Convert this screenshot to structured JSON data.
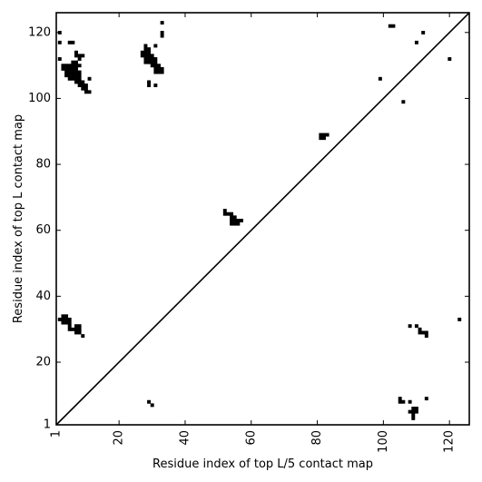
{
  "chart_data": {
    "type": "heatmap",
    "title": "",
    "xlabel": "Residue index of top L/5 contact map",
    "ylabel": "Residue index of top L contact map",
    "xlim": [
      1,
      126
    ],
    "ylim": [
      1,
      126
    ],
    "xticks": [
      {
        "value": 1,
        "label": "1"
      },
      {
        "value": 20,
        "label": "20"
      },
      {
        "value": 40,
        "label": "40"
      },
      {
        "value": 60,
        "label": "60"
      },
      {
        "value": 80,
        "label": "80"
      },
      {
        "value": 100,
        "label": "100"
      },
      {
        "value": 120,
        "label": "120"
      }
    ],
    "yticks": [
      {
        "value": 1,
        "label": "1"
      },
      {
        "value": 20,
        "label": "20"
      },
      {
        "value": 40,
        "label": "40"
      },
      {
        "value": 60,
        "label": "60"
      },
      {
        "value": 80,
        "label": "80"
      },
      {
        "value": 100,
        "label": "100"
      },
      {
        "value": 120,
        "label": "120"
      }
    ],
    "x_tick_rotation": -90,
    "grid": false,
    "diagonal": true,
    "cell_color": "#000000",
    "contacts_upper_top_L": [
      [
        2,
        120
      ],
      [
        2,
        117
      ],
      [
        2,
        112
      ],
      [
        33,
        123
      ],
      [
        33,
        120
      ],
      [
        33,
        119
      ],
      [
        31,
        116
      ],
      [
        28,
        116
      ],
      [
        29,
        115
      ],
      [
        28,
        115
      ],
      [
        5,
        117
      ],
      [
        6,
        117
      ],
      [
        112,
        120
      ],
      [
        110,
        117
      ],
      [
        120,
        112
      ],
      [
        99,
        106
      ],
      [
        106,
        99
      ],
      [
        102,
        122
      ],
      [
        103,
        122
      ],
      [
        27,
        114
      ],
      [
        28,
        114
      ],
      [
        29,
        114
      ],
      [
        27,
        113
      ],
      [
        28,
        113
      ],
      [
        29,
        113
      ],
      [
        30,
        113
      ],
      [
        28,
        112
      ],
      [
        29,
        112
      ],
      [
        30,
        112
      ],
      [
        31,
        112
      ],
      [
        28,
        111
      ],
      [
        29,
        111
      ],
      [
        30,
        111
      ],
      [
        31,
        111
      ],
      [
        30,
        110
      ],
      [
        31,
        110
      ],
      [
        32,
        110
      ],
      [
        31,
        109
      ],
      [
        32,
        109
      ],
      [
        33,
        109
      ],
      [
        31,
        108
      ],
      [
        32,
        108
      ],
      [
        33,
        108
      ],
      [
        29,
        105
      ],
      [
        29,
        104
      ],
      [
        31,
        104
      ],
      [
        7,
        114
      ],
      [
        7,
        113
      ],
      [
        8,
        113
      ],
      [
        9,
        113
      ],
      [
        8,
        112
      ],
      [
        7,
        111
      ],
      [
        6,
        111
      ],
      [
        8,
        110
      ],
      [
        3,
        110
      ],
      [
        4,
        110
      ],
      [
        5,
        110
      ],
      [
        6,
        110
      ],
      [
        7,
        110
      ],
      [
        3,
        109
      ],
      [
        4,
        109
      ],
      [
        5,
        109
      ],
      [
        6,
        109
      ],
      [
        7,
        109
      ],
      [
        4,
        108
      ],
      [
        5,
        108
      ],
      [
        6,
        108
      ],
      [
        7,
        108
      ],
      [
        8,
        108
      ],
      [
        4,
        107
      ],
      [
        5,
        107
      ],
      [
        6,
        107
      ],
      [
        7,
        107
      ],
      [
        8,
        107
      ],
      [
        5,
        106
      ],
      [
        6,
        106
      ],
      [
        7,
        106
      ],
      [
        8,
        106
      ],
      [
        11,
        106
      ],
      [
        7,
        105
      ],
      [
        8,
        105
      ],
      [
        9,
        105
      ],
      [
        8,
        104
      ],
      [
        9,
        104
      ],
      [
        10,
        104
      ],
      [
        9,
        103
      ],
      [
        10,
        103
      ],
      [
        10,
        102
      ],
      [
        11,
        102
      ],
      [
        81,
        89
      ],
      [
        82,
        89
      ],
      [
        83,
        89
      ],
      [
        81,
        88
      ],
      [
        82,
        88
      ],
      [
        52,
        66
      ],
      [
        52,
        65
      ],
      [
        53,
        65
      ],
      [
        54,
        65
      ],
      [
        54,
        64
      ],
      [
        55,
        64
      ],
      [
        54,
        63
      ],
      [
        55,
        63
      ],
      [
        56,
        63
      ],
      [
        57,
        63
      ],
      [
        54,
        62
      ],
      [
        55,
        62
      ],
      [
        56,
        62
      ]
    ],
    "contacts_lower_top_L5": [
      [
        3,
        34
      ],
      [
        4,
        34
      ],
      [
        2,
        33
      ],
      [
        3,
        33
      ],
      [
        4,
        33
      ],
      [
        5,
        33
      ],
      [
        3,
        32
      ],
      [
        4,
        32
      ],
      [
        5,
        32
      ],
      [
        5,
        31
      ],
      [
        7,
        31
      ],
      [
        8,
        31
      ],
      [
        5,
        30
      ],
      [
        6,
        30
      ],
      [
        7,
        30
      ],
      [
        8,
        30
      ],
      [
        7,
        29
      ],
      [
        8,
        29
      ],
      [
        9,
        28
      ],
      [
        108,
        31
      ],
      [
        110,
        31
      ],
      [
        123,
        33
      ],
      [
        111,
        30
      ],
      [
        111,
        29
      ],
      [
        112,
        29
      ],
      [
        113,
        29
      ],
      [
        113,
        28
      ],
      [
        105,
        9
      ],
      [
        106,
        8
      ],
      [
        105,
        8
      ],
      [
        108,
        8
      ],
      [
        113,
        9
      ],
      [
        109,
        6
      ],
      [
        110,
        6
      ],
      [
        108,
        5
      ],
      [
        109,
        5
      ],
      [
        110,
        5
      ],
      [
        109,
        4
      ],
      [
        109,
        3
      ],
      [
        29,
        8
      ],
      [
        30,
        7
      ]
    ]
  }
}
